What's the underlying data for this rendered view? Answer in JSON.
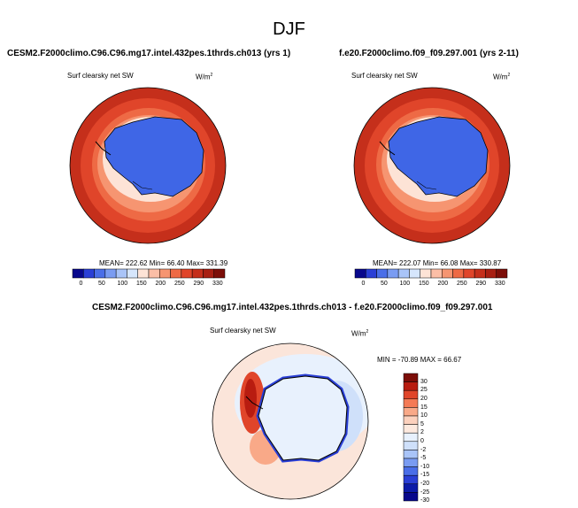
{
  "main_title": "DJF",
  "panels": [
    {
      "title": "CESM2.F2000climo.C96.C96.mg17.intel.432pes.1thrds.ch013 (yrs 1)",
      "variable": "Surf clearsky net SW",
      "units": "W/m",
      "units_sup": "2",
      "stats": "MEAN= 222.62  Min= 66.40  Max= 331.39"
    },
    {
      "title": "f.e20.F2000climo.f09_f09.297.001 (yrs 2-11)",
      "variable": "Surf clearsky net SW",
      "units": "W/m",
      "units_sup": "2",
      "stats": "MEAN= 222.07  Min= 66.08  Max= 330.87"
    },
    {
      "title": "CESM2.F2000climo.C96.C96.mg17.intel.432pes.1thrds.ch013 - f.e20.F2000climo.f09_f09.297.001",
      "variable": "Surf clearsky net SW",
      "units": "W/m",
      "units_sup": "2",
      "stats": "MIN = -70.89 MAX =  66.67"
    }
  ],
  "chart_data": [
    {
      "type": "heatmap",
      "title": "CESM2.F2000climo.C96.C96.mg17.intel.432pes.1thrds.ch013 (yrs 1)",
      "projection": "south polar stereographic",
      "variable": "Surf clearsky net SW",
      "units": "W/m2",
      "mean": 222.62,
      "min": 66.4,
      "max": 331.39,
      "colorbar_ticks": [
        "0",
        "50",
        "100",
        "150",
        "200",
        "250",
        "290",
        "330"
      ]
    },
    {
      "type": "heatmap",
      "title": "f.e20.F2000climo.f09_f09.297.001 (yrs 2-11)",
      "projection": "south polar stereographic",
      "variable": "Surf clearsky net SW",
      "units": "W/m2",
      "mean": 222.07,
      "min": 66.08,
      "max": 330.87,
      "colorbar_ticks": [
        "0",
        "50",
        "100",
        "150",
        "200",
        "250",
        "290",
        "330"
      ]
    },
    {
      "type": "heatmap",
      "title": "CESM2.F2000climo.C96.C96.mg17.intel.432pes.1thrds.ch013 - f.e20.F2000climo.f09_f09.297.001",
      "projection": "south polar stereographic",
      "variable": "Surf clearsky net SW",
      "units": "W/m2",
      "min": -70.89,
      "max": 66.67,
      "colorbar_ticks": [
        "30",
        "25",
        "20",
        "15",
        "10",
        "5",
        "2",
        "0",
        "-2",
        "-5",
        "-10",
        "-15",
        "-20",
        "-25",
        "-30"
      ]
    }
  ],
  "colors": {
    "abs_scale": [
      "#08088c",
      "#2a3fd6",
      "#4a6ee8",
      "#7a9cf2",
      "#a9c4f8",
      "#d6e6fc",
      "#fde3d6",
      "#fbbea6",
      "#f69571",
      "#ee6a45",
      "#e0452a",
      "#c52f1b",
      "#a81f12",
      "#7c0e08"
    ],
    "diff_scale": [
      "#7c0e08",
      "#b81c10",
      "#e0452a",
      "#f47a55",
      "#f9a988",
      "#fcd1bd",
      "#fde9de",
      "#e8f1fd",
      "#cfe0fa",
      "#a9c4f8",
      "#7a9cf2",
      "#4a6ee8",
      "#2a3fd6",
      "#0c1ba8",
      "#08088c"
    ],
    "antarctica": "#3f66e6",
    "ocean_outer": "#c52f1b",
    "diff_background": "#fbe5da"
  }
}
